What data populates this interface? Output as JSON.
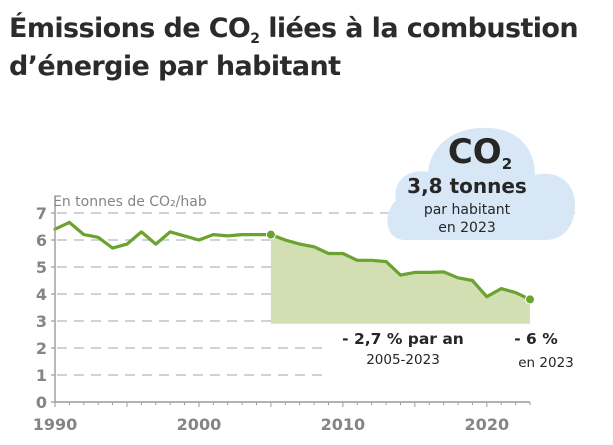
{
  "title": {
    "line1_pre": "Émissions de CO",
    "line1_sub": "2",
    "line1_post": " liées à la combustion",
    "line2": "d’énergie par habitant"
  },
  "colors": {
    "line": "#6aa32e",
    "fill": "#d1dfb3",
    "grid": "#b9c5d7",
    "axis": "#9a9a9a",
    "cloud": "#d8e7f5",
    "text": "#262626",
    "tick_text": "#858585"
  },
  "cloud": {
    "icon": "cloud-icon",
    "co2_main": "CO",
    "co2_sub": "2",
    "value": "3,8 tonnes",
    "line2": "par habitant",
    "line3": "en 2023"
  },
  "annotations": {
    "trend_value": "- 2,7 % par an",
    "trend_period": "2005-2023",
    "last_value": "- 6 %",
    "last_period": "en 2023"
  },
  "chart_data": {
    "type": "line",
    "title": "Émissions de CO2 liées à la combustion d’énergie par habitant",
    "ylabel": "En tonnes de CO₂/hab",
    "xlabel": "",
    "xlim": [
      1990,
      2023
    ],
    "ylim": [
      0,
      7
    ],
    "grid": true,
    "x_ticks": [
      1990,
      2000,
      2010,
      2020
    ],
    "x_tick_labels": [
      "1990",
      "2000",
      "2010",
      "2020"
    ],
    "y_ticks": [
      0,
      1,
      2,
      3,
      4,
      5,
      6,
      7
    ],
    "y_tick_labels": [
      "0",
      "1",
      "2",
      "3",
      "4",
      "5",
      "6",
      "7"
    ],
    "series": [
      {
        "name": "CO2 par habitant",
        "x": [
          1990,
          1991,
          1992,
          1993,
          1994,
          1995,
          1996,
          1997,
          1998,
          1999,
          2000,
          2001,
          2002,
          2003,
          2004,
          2005,
          2006,
          2007,
          2008,
          2009,
          2010,
          2011,
          2012,
          2013,
          2014,
          2015,
          2016,
          2017,
          2018,
          2019,
          2020,
          2021,
          2022,
          2023
        ],
        "values": [
          6.4,
          6.65,
          6.2,
          6.1,
          5.7,
          5.85,
          6.3,
          5.85,
          6.3,
          6.15,
          6.0,
          6.2,
          6.15,
          6.2,
          6.2,
          6.2,
          6.0,
          5.85,
          5.75,
          5.5,
          5.5,
          5.25,
          5.25,
          5.2,
          4.7,
          4.8,
          4.8,
          4.82,
          4.6,
          4.5,
          3.9,
          4.2,
          4.05,
          3.8
        ]
      }
    ],
    "highlight_range": [
      2005,
      2023
    ],
    "highlight_markers": [
      2005,
      2023
    ]
  }
}
